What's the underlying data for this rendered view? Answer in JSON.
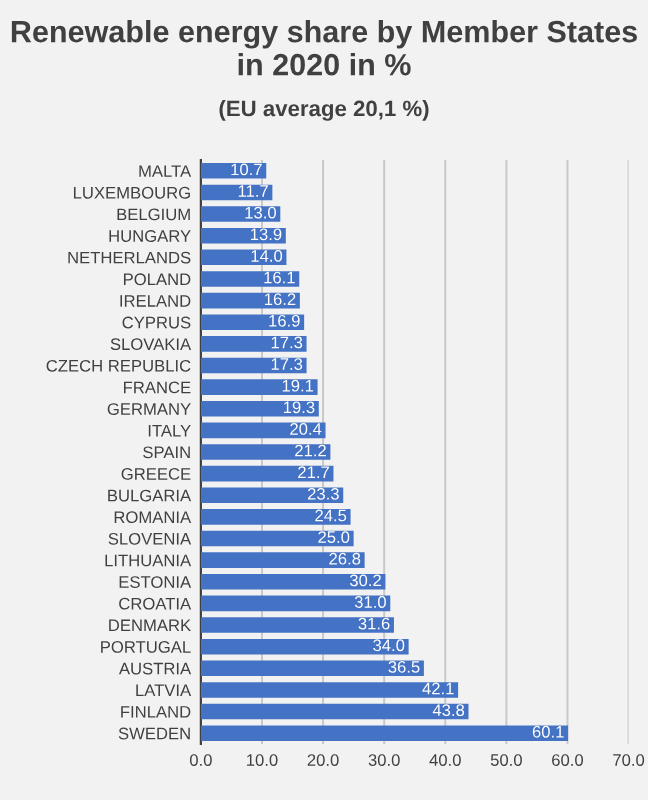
{
  "chart_data": {
    "type": "bar",
    "orientation": "horizontal",
    "title": "Renewable energy share by Member States in 2020 in %",
    "subtitle": "(EU average 20,1 %)",
    "categories": [
      "MALTA",
      "LUXEMBOURG",
      "BELGIUM",
      "HUNGARY",
      "NETHERLANDS",
      "POLAND",
      "IRELAND",
      "CYPRUS",
      "SLOVAKIA",
      "CZECH REPUBLIC",
      "FRANCE",
      "GERMANY",
      "ITALY",
      "SPAIN",
      "GREECE",
      "BULGARIA",
      "ROMANIA",
      "SLOVENIA",
      "LITHUANIA",
      "ESTONIA",
      "CROATIA",
      "DENMARK",
      "PORTUGAL",
      "AUSTRIA",
      "LATVIA",
      "FINLAND",
      "SWEDEN"
    ],
    "values": [
      10.7,
      11.7,
      13.0,
      13.9,
      14.0,
      16.1,
      16.2,
      16.9,
      17.3,
      17.3,
      19.1,
      19.3,
      20.4,
      21.2,
      21.7,
      23.3,
      24.5,
      25.0,
      26.8,
      30.2,
      31.0,
      31.6,
      34.0,
      36.5,
      42.1,
      43.8,
      60.1
    ],
    "value_labels": [
      "10.7",
      "11.7",
      "13.0",
      "13.9",
      "14.0",
      "16.1",
      "16.2",
      "16.9",
      "17.3",
      "17.3",
      "19.1",
      "19.3",
      "20.4",
      "21.2",
      "21.7",
      "23.3",
      "24.5",
      "25.0",
      "26.8",
      "30.2",
      "31.0",
      "31.6",
      "34.0",
      "36.5",
      "42.1",
      "43.8",
      "60.1"
    ],
    "color": "#4472c4",
    "xlim": [
      0,
      70
    ],
    "xticks": [
      {
        "value": 0,
        "label": "0.0"
      },
      {
        "value": 10,
        "label": "10.0"
      },
      {
        "value": 20,
        "label": "20.0"
      },
      {
        "value": 30,
        "label": "30.0"
      },
      {
        "value": 40,
        "label": "40.0"
      },
      {
        "value": 50,
        "label": "50.0"
      },
      {
        "value": 60,
        "label": "60.0"
      },
      {
        "value": 70,
        "label": "70.0"
      }
    ],
    "grid": "x"
  }
}
